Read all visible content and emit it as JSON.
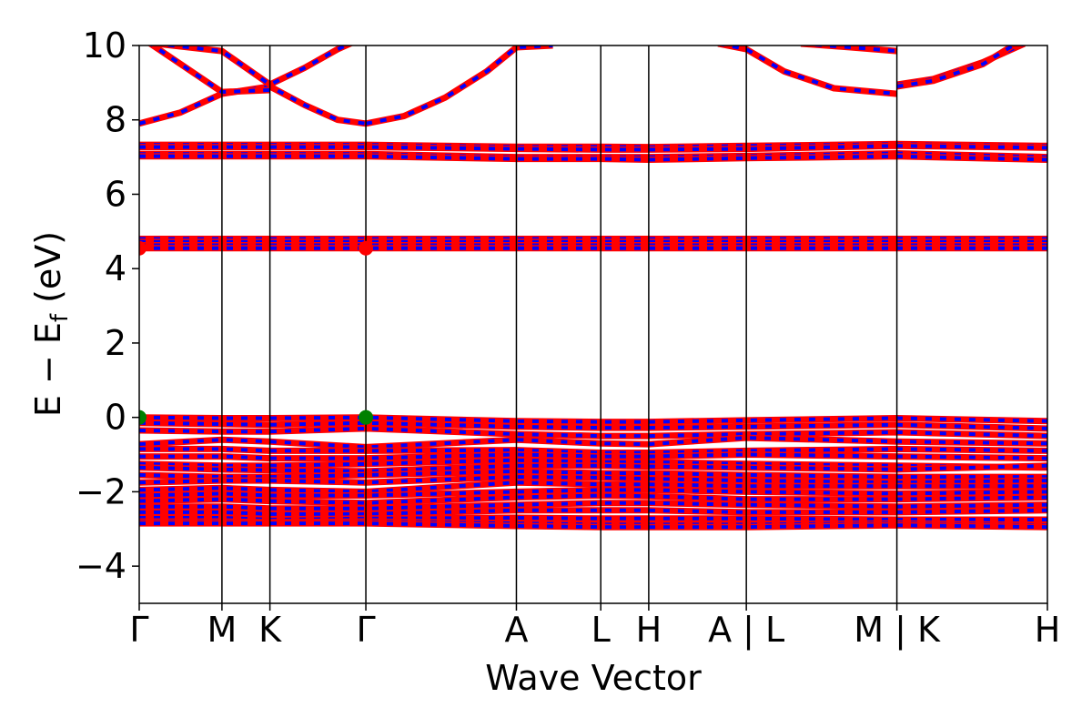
{
  "chart_data": {
    "type": "line",
    "title": "",
    "xlabel": "Wave Vector",
    "ylabel_main": "E − E",
    "ylabel_sub": "f",
    "ylabel_unit": " (eV)",
    "ylim": [
      -5,
      10
    ],
    "yticks": [
      -4,
      -2,
      0,
      2,
      4,
      6,
      8,
      10
    ],
    "ytick_labels": [
      "−4",
      "−2",
      "0",
      "2",
      "4",
      "6",
      "8",
      "10"
    ],
    "grid": false,
    "legend": "none",
    "kpoint_positions": [
      0,
      0.5,
      0.79,
      1.37,
      2.28,
      2.79,
      3.08,
      3.67,
      4.58,
      5.49
    ],
    "kpoint_labels": [
      "Γ",
      "M",
      "K",
      "Γ",
      "A",
      "L",
      "H",
      "A | L",
      "M | K",
      "H"
    ],
    "xlim": [
      0,
      5.49
    ],
    "colors": {
      "spin_up": "#ff0000",
      "spin_down": "#0000ff",
      "marker_vbm": "#008000",
      "marker_cbm": "#ff0000"
    },
    "series": [
      {
        "x": [
          0,
          0.25,
          0.5,
          0.79,
          1.0,
          1.2,
          1.37
        ],
        "y": [
          7.9,
          8.2,
          8.7,
          8.9,
          8.4,
          8.0,
          7.9
        ]
      },
      {
        "x": [
          1.37,
          1.6,
          1.85,
          2.1,
          2.28,
          2.5
        ],
        "y": [
          7.9,
          8.1,
          8.6,
          9.3,
          9.95,
          10.0
        ]
      },
      {
        "x": [
          0,
          0.2,
          0.5,
          0.79,
          1.0,
          1.2,
          1.3
        ],
        "y": [
          10.1,
          10.0,
          9.85,
          8.95,
          9.4,
          9.9,
          10.1
        ]
      },
      {
        "x": [
          0.05,
          0.25,
          0.5,
          0.79
        ],
        "y": [
          10.1,
          9.5,
          8.75,
          8.8
        ]
      },
      {
        "x": [
          3.5,
          3.67,
          3.9,
          4.2,
          4.58
        ],
        "y": [
          10.05,
          9.9,
          9.3,
          8.85,
          8.7
        ]
      },
      {
        "x": [
          4.0,
          4.3,
          4.58
        ],
        "y": [
          10.05,
          9.95,
          9.85
        ]
      },
      {
        "x": [
          4.58,
          4.8,
          5.1,
          5.35
        ],
        "y": [
          8.95,
          9.1,
          9.55,
          10.05
        ]
      },
      {
        "x": [
          4.58,
          4.8,
          5.1,
          5.3
        ],
        "y": [
          8.9,
          9.05,
          9.5,
          10.05
        ]
      },
      {
        "x": [
          0,
          1.37,
          2.28,
          2.79,
          3.08,
          3.67,
          4.58,
          5.49
        ],
        "y": [
          7.33,
          7.33,
          7.28,
          7.28,
          7.27,
          7.3,
          7.35,
          7.3
        ]
      },
      {
        "x": [
          0,
          1.37,
          2.28,
          2.79,
          3.08,
          3.67,
          4.58,
          5.49
        ],
        "y": [
          7.27,
          7.27,
          7.22,
          7.2,
          7.2,
          7.22,
          7.3,
          7.25
        ]
      },
      {
        "x": [
          0,
          1.37,
          2.28,
          2.79,
          3.08,
          3.67,
          4.58,
          5.49
        ],
        "y": [
          7.08,
          7.08,
          7.0,
          7.0,
          7.0,
          7.03,
          7.1,
          7.0
        ]
      },
      {
        "x": [
          0,
          1.37,
          2.28,
          2.79,
          3.08,
          3.67,
          4.58,
          5.49
        ],
        "y": [
          7.02,
          7.02,
          6.95,
          6.95,
          6.93,
          6.97,
          7.02,
          6.93
        ]
      },
      {
        "x": [
          0,
          5.49
        ],
        "y": [
          4.8,
          4.8
        ]
      },
      {
        "x": [
          0,
          5.49
        ],
        "y": [
          4.72,
          4.72
        ]
      },
      {
        "x": [
          0,
          5.49
        ],
        "y": [
          4.63,
          4.63
        ]
      },
      {
        "x": [
          0,
          5.49
        ],
        "y": [
          4.55,
          4.55
        ]
      },
      {
        "x": [
          0,
          0.5,
          0.79,
          1.37,
          2.28,
          2.79,
          3.08,
          3.67,
          4.58,
          5.49
        ],
        "y": [
          0.0,
          -0.02,
          -0.02,
          0.0,
          -0.1,
          -0.12,
          -0.12,
          -0.08,
          -0.02,
          -0.1
        ]
      },
      {
        "x": [
          0,
          0.5,
          0.79,
          1.37,
          2.28,
          2.79,
          3.08,
          3.67,
          4.58,
          5.49
        ],
        "y": [
          -0.15,
          -0.18,
          -0.2,
          -0.15,
          -0.25,
          -0.28,
          -0.28,
          -0.25,
          -0.2,
          -0.3
        ]
      },
      {
        "x": [
          0,
          0.5,
          0.79,
          1.37,
          2.28,
          2.79,
          3.08,
          3.67,
          4.58,
          5.49
        ],
        "y": [
          -0.35,
          -0.38,
          -0.38,
          -0.3,
          -0.45,
          -0.5,
          -0.5,
          -0.45,
          -0.4,
          -0.5
        ]
      },
      {
        "x": [
          0,
          0.5,
          0.79,
          1.37,
          2.28,
          2.79,
          3.08,
          3.67,
          4.58,
          5.49
        ],
        "y": [
          -0.72,
          -0.6,
          -0.65,
          -0.8,
          -0.6,
          -0.7,
          -0.72,
          -0.55,
          -0.65,
          -0.7
        ]
      },
      {
        "x": [
          0,
          0.5,
          0.79,
          1.37,
          2.28,
          2.79,
          3.08,
          3.67,
          4.58,
          5.49
        ],
        "y": [
          -0.85,
          -0.85,
          -0.9,
          -0.9,
          -0.88,
          -0.95,
          -0.95,
          -0.9,
          -0.85,
          -0.9
        ]
      },
      {
        "x": [
          0,
          0.5,
          0.79,
          1.37,
          2.28,
          2.79,
          3.08,
          3.67,
          4.58,
          5.49
        ],
        "y": [
          -1.05,
          -1.05,
          -1.1,
          -1.1,
          -1.0,
          -1.05,
          -1.05,
          -1.0,
          -1.05,
          -1.1
        ]
      },
      {
        "x": [
          0,
          0.5,
          0.79,
          1.37,
          2.28,
          2.79,
          3.08,
          3.67,
          4.58,
          5.49
        ],
        "y": [
          -1.25,
          -1.3,
          -1.3,
          -1.25,
          -1.15,
          -1.2,
          -1.2,
          -1.25,
          -1.3,
          -1.35
        ]
      },
      {
        "x": [
          0,
          0.5,
          0.79,
          1.37,
          2.28,
          2.79,
          3.08,
          3.67,
          4.58,
          5.49
        ],
        "y": [
          -1.35,
          -1.4,
          -1.42,
          -1.45,
          -1.3,
          -1.3,
          -1.32,
          -1.35,
          -1.4,
          -1.3
        ]
      },
      {
        "x": [
          0,
          0.5,
          0.79,
          1.37,
          2.28,
          2.79,
          3.08,
          3.67,
          4.58,
          5.49
        ],
        "y": [
          -1.55,
          -1.6,
          -1.6,
          -1.55,
          -1.45,
          -1.5,
          -1.5,
          -1.55,
          -1.6,
          -1.6
        ]
      },
      {
        "x": [
          0,
          0.5,
          0.79,
          1.37,
          2.28,
          2.79,
          3.08,
          3.67,
          4.58,
          5.49
        ],
        "y": [
          -1.75,
          -1.7,
          -1.7,
          -1.75,
          -1.6,
          -1.62,
          -1.65,
          -1.7,
          -1.75,
          -1.7
        ]
      },
      {
        "x": [
          0,
          0.5,
          0.79,
          1.37,
          2.28,
          2.79,
          3.08,
          3.67,
          4.58,
          5.49
        ],
        "y": [
          -1.95,
          -1.9,
          -1.95,
          -2.0,
          -1.75,
          -1.8,
          -1.8,
          -1.85,
          -1.85,
          -1.85
        ]
      },
      {
        "x": [
          0,
          0.5,
          0.79,
          1.37,
          2.28,
          2.79,
          3.08,
          3.67,
          4.58,
          5.49
        ],
        "y": [
          -2.1,
          -2.05,
          -2.1,
          -2.1,
          -2.0,
          -1.95,
          -1.95,
          -2.0,
          -2.05,
          -2.0
        ]
      },
      {
        "x": [
          0,
          0.5,
          0.79,
          1.37,
          2.28,
          2.79,
          3.08,
          3.67,
          4.58,
          5.49
        ],
        "y": [
          -2.25,
          -2.2,
          -2.25,
          -2.3,
          -2.15,
          -2.1,
          -2.12,
          -2.2,
          -2.2,
          -2.15
        ]
      },
      {
        "x": [
          0,
          0.5,
          0.79,
          1.37,
          2.28,
          2.79,
          3.08,
          3.67,
          4.58,
          5.49
        ],
        "y": [
          -2.4,
          -2.4,
          -2.45,
          -2.45,
          -2.35,
          -2.3,
          -2.3,
          -2.35,
          -2.4,
          -2.35
        ]
      },
      {
        "x": [
          0,
          0.5,
          0.79,
          1.37,
          2.28,
          2.79,
          3.08,
          3.67,
          4.58,
          5.49
        ],
        "y": [
          -2.55,
          -2.55,
          -2.6,
          -2.6,
          -2.5,
          -2.5,
          -2.5,
          -2.55,
          -2.55,
          -2.5
        ]
      },
      {
        "x": [
          0,
          0.5,
          0.79,
          1.37,
          2.28,
          2.79,
          3.08,
          3.67,
          4.58,
          5.49
        ],
        "y": [
          -2.7,
          -2.7,
          -2.75,
          -2.72,
          -2.7,
          -2.72,
          -2.72,
          -2.72,
          -2.75,
          -2.75
        ]
      },
      {
        "x": [
          0,
          0.5,
          0.79,
          1.37,
          2.28,
          2.79,
          3.08,
          3.67,
          4.58,
          5.49
        ],
        "y": [
          -2.8,
          -2.8,
          -2.82,
          -2.8,
          -2.85,
          -2.88,
          -2.88,
          -2.88,
          -2.85,
          -2.9
        ]
      },
      {
        "x": [
          0,
          0.5,
          0.79,
          1.37,
          2.28,
          2.79,
          3.08,
          3.67,
          4.58,
          5.49
        ],
        "y": [
          -2.85,
          -2.85,
          -2.85,
          -2.85,
          -2.92,
          -2.95,
          -2.95,
          -2.95,
          -2.9,
          -2.95
        ]
      }
    ],
    "markers": [
      {
        "kind": "vbm",
        "x": 0,
        "y": 0.0
      },
      {
        "kind": "vbm",
        "x": 1.37,
        "y": 0.0
      },
      {
        "kind": "cbm",
        "x": 0,
        "y": 4.55
      },
      {
        "kind": "cbm",
        "x": 1.37,
        "y": 4.55
      }
    ]
  }
}
